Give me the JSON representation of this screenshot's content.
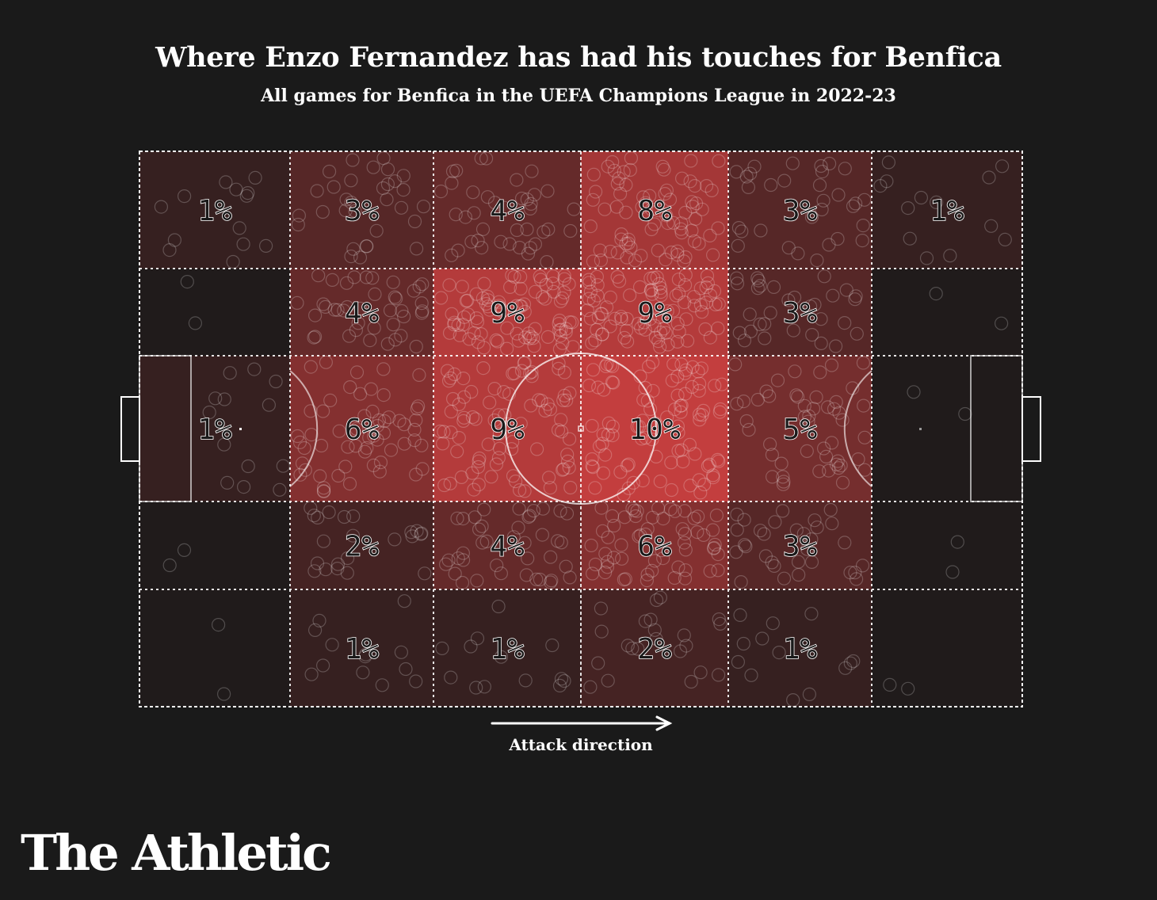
{
  "header": {
    "title": "Where Enzo Fernandez has had his touches for Benfica",
    "subtitle": "All games for Benfica in the UEFA Champions League in 2022-23"
  },
  "footer": {
    "arrow_label": "Attack direction",
    "logo": "The Athletic"
  },
  "colors": {
    "background": "#1a1a1a",
    "heat": "#e04545",
    "lines": "#ffffff"
  },
  "chart_data": {
    "type": "heatmap",
    "title": "Where Enzo Fernandez has had his touches for Benfica",
    "subtitle": "All games for Benfica in the UEFA Champions League in 2022-23",
    "rows": 5,
    "columns": 6,
    "attack_direction": "left-to-right",
    "value_unit": "%",
    "values": [
      [
        1,
        3,
        4,
        8,
        3,
        1
      ],
      [
        null,
        4,
        9,
        9,
        3,
        null
      ],
      [
        1,
        6,
        9,
        10,
        5,
        null
      ],
      [
        null,
        2,
        4,
        6,
        3,
        null
      ],
      [
        null,
        1,
        1,
        2,
        1,
        null
      ]
    ],
    "labels": [
      [
        "1%",
        "3%",
        "4%",
        "8%",
        "3%",
        "1%"
      ],
      [
        "",
        "4%",
        "9%",
        "9%",
        "3%",
        ""
      ],
      [
        "1%",
        "6%",
        "9%",
        "10%",
        "5%",
        ""
      ],
      [
        "",
        "2%",
        "4%",
        "6%",
        "3%",
        ""
      ],
      [
        "",
        "1%",
        "1%",
        "2%",
        "1%",
        ""
      ]
    ]
  }
}
